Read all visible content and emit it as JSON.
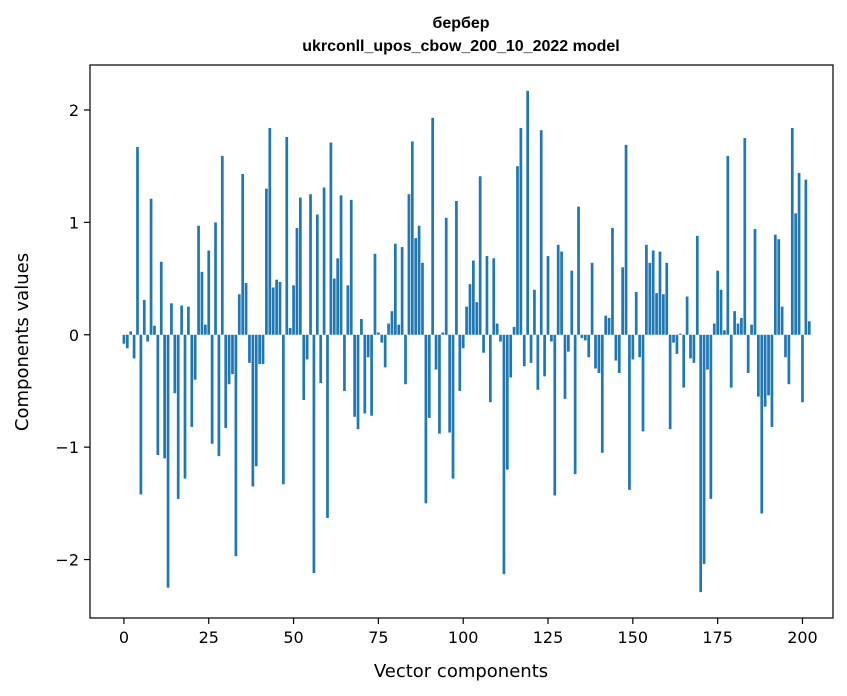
{
  "chart_data": {
    "type": "bar",
    "title_line1": "бербер",
    "title_line2": "ukrconll_upos_cbow_200_10_2022 model",
    "xlabel": "Vector components",
    "ylabel": "Components values",
    "xlim": [
      -10,
      209
    ],
    "ylim": [
      -2.52,
      2.4
    ],
    "xticks": [
      0,
      25,
      50,
      75,
      100,
      125,
      150,
      175,
      200
    ],
    "yticks": [
      -2,
      -1,
      0,
      1,
      2
    ],
    "ytick_labels": [
      "−2",
      "−1",
      "0",
      "1",
      "2"
    ],
    "bar_color": "#1f77b4",
    "grid": false,
    "values": [
      -0.08,
      -0.12,
      0.03,
      -0.21,
      1.67,
      -1.42,
      0.31,
      -0.06,
      1.21,
      0.08,
      -1.07,
      0.65,
      -1.1,
      -2.25,
      0.28,
      -0.52,
      -1.46,
      0.26,
      -1.28,
      0.25,
      -0.82,
      -0.4,
      0.97,
      0.56,
      0.09,
      0.75,
      -0.97,
      1.0,
      -1.08,
      1.59,
      -0.83,
      -0.44,
      -0.35,
      -1.97,
      0.36,
      1.43,
      0.46,
      -0.25,
      -1.35,
      -1.17,
      -0.26,
      -0.26,
      1.3,
      1.84,
      0.42,
      0.49,
      0.47,
      -1.33,
      1.76,
      0.06,
      0.44,
      0.95,
      1.22,
      -0.58,
      -0.22,
      1.25,
      -2.12,
      1.07,
      -0.43,
      1.31,
      -1.63,
      1.71,
      0.5,
      0.68,
      1.24,
      -0.5,
      0.44,
      1.2,
      -0.73,
      -0.84,
      0.14,
      -0.7,
      -0.2,
      -0.72,
      0.72,
      0.02,
      -0.07,
      -0.29,
      0.1,
      0.21,
      0.81,
      0.09,
      0.78,
      -0.44,
      1.25,
      1.72,
      0.86,
      0.97,
      0.64,
      -1.5,
      -0.74,
      1.93,
      -0.31,
      -0.88,
      0.02,
      1.04,
      -0.87,
      -1.28,
      1.19,
      -0.5,
      -0.12,
      0.25,
      0.45,
      0.66,
      0.29,
      1.41,
      -0.16,
      0.7,
      -0.6,
      0.68,
      0.1,
      -0.06,
      -2.13,
      -1.2,
      -0.38,
      0.07,
      1.5,
      1.84,
      -0.28,
      2.17,
      -0.25,
      0.4,
      -0.49,
      1.82,
      -0.37,
      0.7,
      -0.06,
      -1.43,
      0.8,
      0.74,
      -0.57,
      -0.15,
      0.57,
      -1.24,
      1.14,
      -0.03,
      -0.05,
      -0.2,
      0.64,
      -0.3,
      -0.34,
      -1.05,
      0.17,
      0.15,
      0.95,
      -0.23,
      -0.34,
      0.6,
      1.69,
      -1.38,
      -0.22,
      0.38,
      -0.2,
      -0.86,
      0.8,
      0.64,
      0.75,
      0.37,
      0.74,
      0.36,
      0.64,
      -0.84,
      -0.07,
      -0.17,
      0.01,
      -0.47,
      0.34,
      -0.21,
      -0.25,
      0.88,
      -2.29,
      -2.04,
      -0.31,
      -1.46,
      0.1,
      0.57,
      0.4,
      0.04,
      1.59,
      -0.47,
      0.21,
      0.1,
      0.15,
      1.75,
      -0.34,
      0.09,
      0.94,
      -0.55,
      -1.59,
      -0.64,
      -0.54,
      -0.82,
      0.89,
      0.85,
      0.25,
      -0.2,
      -0.44,
      1.84,
      1.08,
      1.44,
      -0.6,
      1.38,
      0.12
    ]
  }
}
